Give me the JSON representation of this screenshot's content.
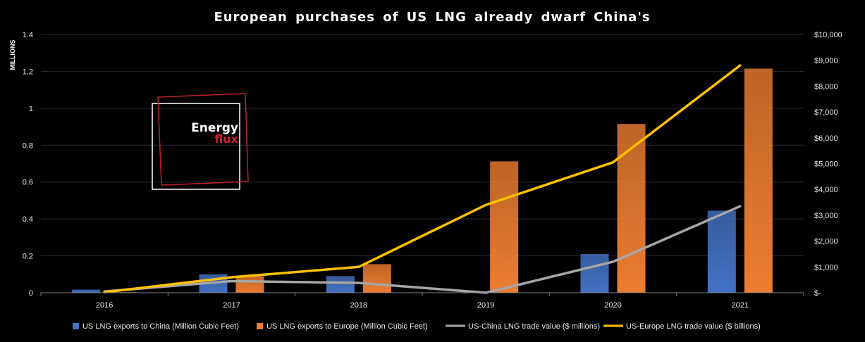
{
  "chart_data": {
    "type": "bar",
    "title": "European  purchases  of US LNG already  dwarf  China's",
    "ylabel_left": "MILLIONS",
    "categories": [
      "2016",
      "2017",
      "2018",
      "2019",
      "2020",
      "2021"
    ],
    "ylim_left": [
      0,
      1.4
    ],
    "yticks_left": [
      "0",
      "0.2",
      "0.4",
      "0.6",
      "0.8",
      "1",
      "1.2",
      "1.4"
    ],
    "ylim_right": [
      0,
      10000
    ],
    "yticks_right": [
      "$-",
      "$1,000",
      "$2,000",
      "$3,000",
      "$4,000",
      "$5,000",
      "$6,000",
      "$7,000",
      "$8,000",
      "$9,000",
      "$10,000"
    ],
    "grid": true,
    "legend_position": "bottom",
    "bar_series": [
      {
        "name": "US LNG exports to China (Million Cubic Feet)",
        "axis": "left",
        "color": "#4472c4",
        "values": [
          0.017,
          0.1,
          0.09,
          0.0,
          0.21,
          0.445
        ]
      },
      {
        "name": "US LNG exports to Europe (Million Cubic Feet)",
        "axis": "left",
        "color": "#ed7d31",
        "values": [
          0.003,
          0.09,
          0.155,
          0.712,
          0.915,
          1.215
        ]
      }
    ],
    "line_series": [
      {
        "name": "US-China LNG trade value ($ millions)",
        "axis": "right",
        "color": "#a6a6a6",
        "values": [
          50,
          450,
          380,
          0,
          1200,
          3350
        ]
      },
      {
        "name": "US-Europe LNG trade value ($ billions)",
        "axis": "right",
        "color": "#ffc000",
        "values": [
          20,
          600,
          1000,
          3400,
          5050,
          8800
        ]
      }
    ]
  },
  "logo": {
    "line1": "Energy",
    "line2": "flux"
  }
}
